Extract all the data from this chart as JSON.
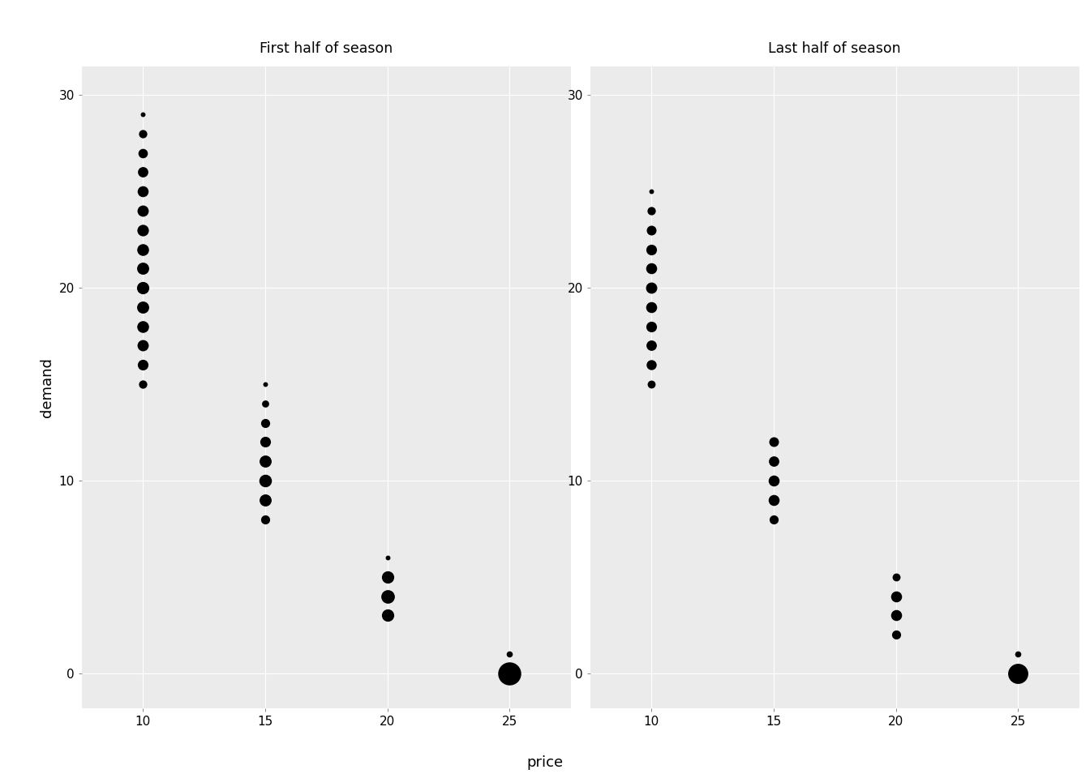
{
  "panels": [
    {
      "title": "First half of season",
      "data": [
        {
          "price": 10,
          "demand": 29,
          "size": 18
        },
        {
          "price": 10,
          "demand": 28,
          "size": 55
        },
        {
          "price": 10,
          "demand": 27,
          "size": 70
        },
        {
          "price": 10,
          "demand": 26,
          "size": 85
        },
        {
          "price": 10,
          "demand": 25,
          "size": 95
        },
        {
          "price": 10,
          "demand": 24,
          "size": 100
        },
        {
          "price": 10,
          "demand": 23,
          "size": 105
        },
        {
          "price": 10,
          "demand": 22,
          "size": 110
        },
        {
          "price": 10,
          "demand": 21,
          "size": 115
        },
        {
          "price": 10,
          "demand": 20,
          "size": 120
        },
        {
          "price": 10,
          "demand": 19,
          "size": 115
        },
        {
          "price": 10,
          "demand": 18,
          "size": 110
        },
        {
          "price": 10,
          "demand": 17,
          "size": 100
        },
        {
          "price": 10,
          "demand": 16,
          "size": 90
        },
        {
          "price": 10,
          "demand": 15,
          "size": 55
        },
        {
          "price": 15,
          "demand": 15,
          "size": 18
        },
        {
          "price": 15,
          "demand": 14,
          "size": 40
        },
        {
          "price": 15,
          "demand": 13,
          "size": 65
        },
        {
          "price": 15,
          "demand": 12,
          "size": 90
        },
        {
          "price": 15,
          "demand": 11,
          "size": 115
        },
        {
          "price": 15,
          "demand": 10,
          "size": 125
        },
        {
          "price": 15,
          "demand": 9,
          "size": 115
        },
        {
          "price": 15,
          "demand": 8,
          "size": 65
        },
        {
          "price": 20,
          "demand": 6,
          "size": 18
        },
        {
          "price": 20,
          "demand": 5,
          "size": 120
        },
        {
          "price": 20,
          "demand": 4,
          "size": 145
        },
        {
          "price": 20,
          "demand": 3,
          "size": 120
        },
        {
          "price": 25,
          "demand": 1,
          "size": 30
        },
        {
          "price": 25,
          "demand": 0,
          "size": 420
        }
      ]
    },
    {
      "title": "Last half of season",
      "data": [
        {
          "price": 10,
          "demand": 25,
          "size": 18
        },
        {
          "price": 10,
          "demand": 24,
          "size": 55
        },
        {
          "price": 10,
          "demand": 23,
          "size": 75
        },
        {
          "price": 10,
          "demand": 22,
          "size": 90
        },
        {
          "price": 10,
          "demand": 21,
          "size": 95
        },
        {
          "price": 10,
          "demand": 20,
          "size": 100
        },
        {
          "price": 10,
          "demand": 19,
          "size": 95
        },
        {
          "price": 10,
          "demand": 18,
          "size": 90
        },
        {
          "price": 10,
          "demand": 17,
          "size": 85
        },
        {
          "price": 10,
          "demand": 16,
          "size": 80
        },
        {
          "price": 10,
          "demand": 15,
          "size": 50
        },
        {
          "price": 15,
          "demand": 12,
          "size": 75
        },
        {
          "price": 15,
          "demand": 11,
          "size": 85
        },
        {
          "price": 15,
          "demand": 10,
          "size": 95
        },
        {
          "price": 15,
          "demand": 9,
          "size": 95
        },
        {
          "price": 15,
          "demand": 8,
          "size": 65
        },
        {
          "price": 20,
          "demand": 5,
          "size": 50
        },
        {
          "price": 20,
          "demand": 4,
          "size": 95
        },
        {
          "price": 20,
          "demand": 3,
          "size": 95
        },
        {
          "price": 20,
          "demand": 2,
          "size": 65
        },
        {
          "price": 25,
          "demand": 1,
          "size": 30
        },
        {
          "price": 25,
          "demand": 0,
          "size": 320
        }
      ]
    }
  ],
  "xlabel": "price",
  "ylabel": "demand",
  "xlim": [
    7.5,
    27.5
  ],
  "ylim": [
    -1.8,
    31.5
  ],
  "xticks": [
    10,
    15,
    20,
    25
  ],
  "yticks": [
    0,
    10,
    20,
    30
  ],
  "background_color": "#EBEBEB",
  "panel_header_color": "#D3D3D3",
  "dot_color": "#000000",
  "grid_color": "#FFFFFF",
  "title_fontsize": 12.5,
  "axis_label_fontsize": 13,
  "tick_fontsize": 11,
  "outer_bg": "#FFFFFF"
}
